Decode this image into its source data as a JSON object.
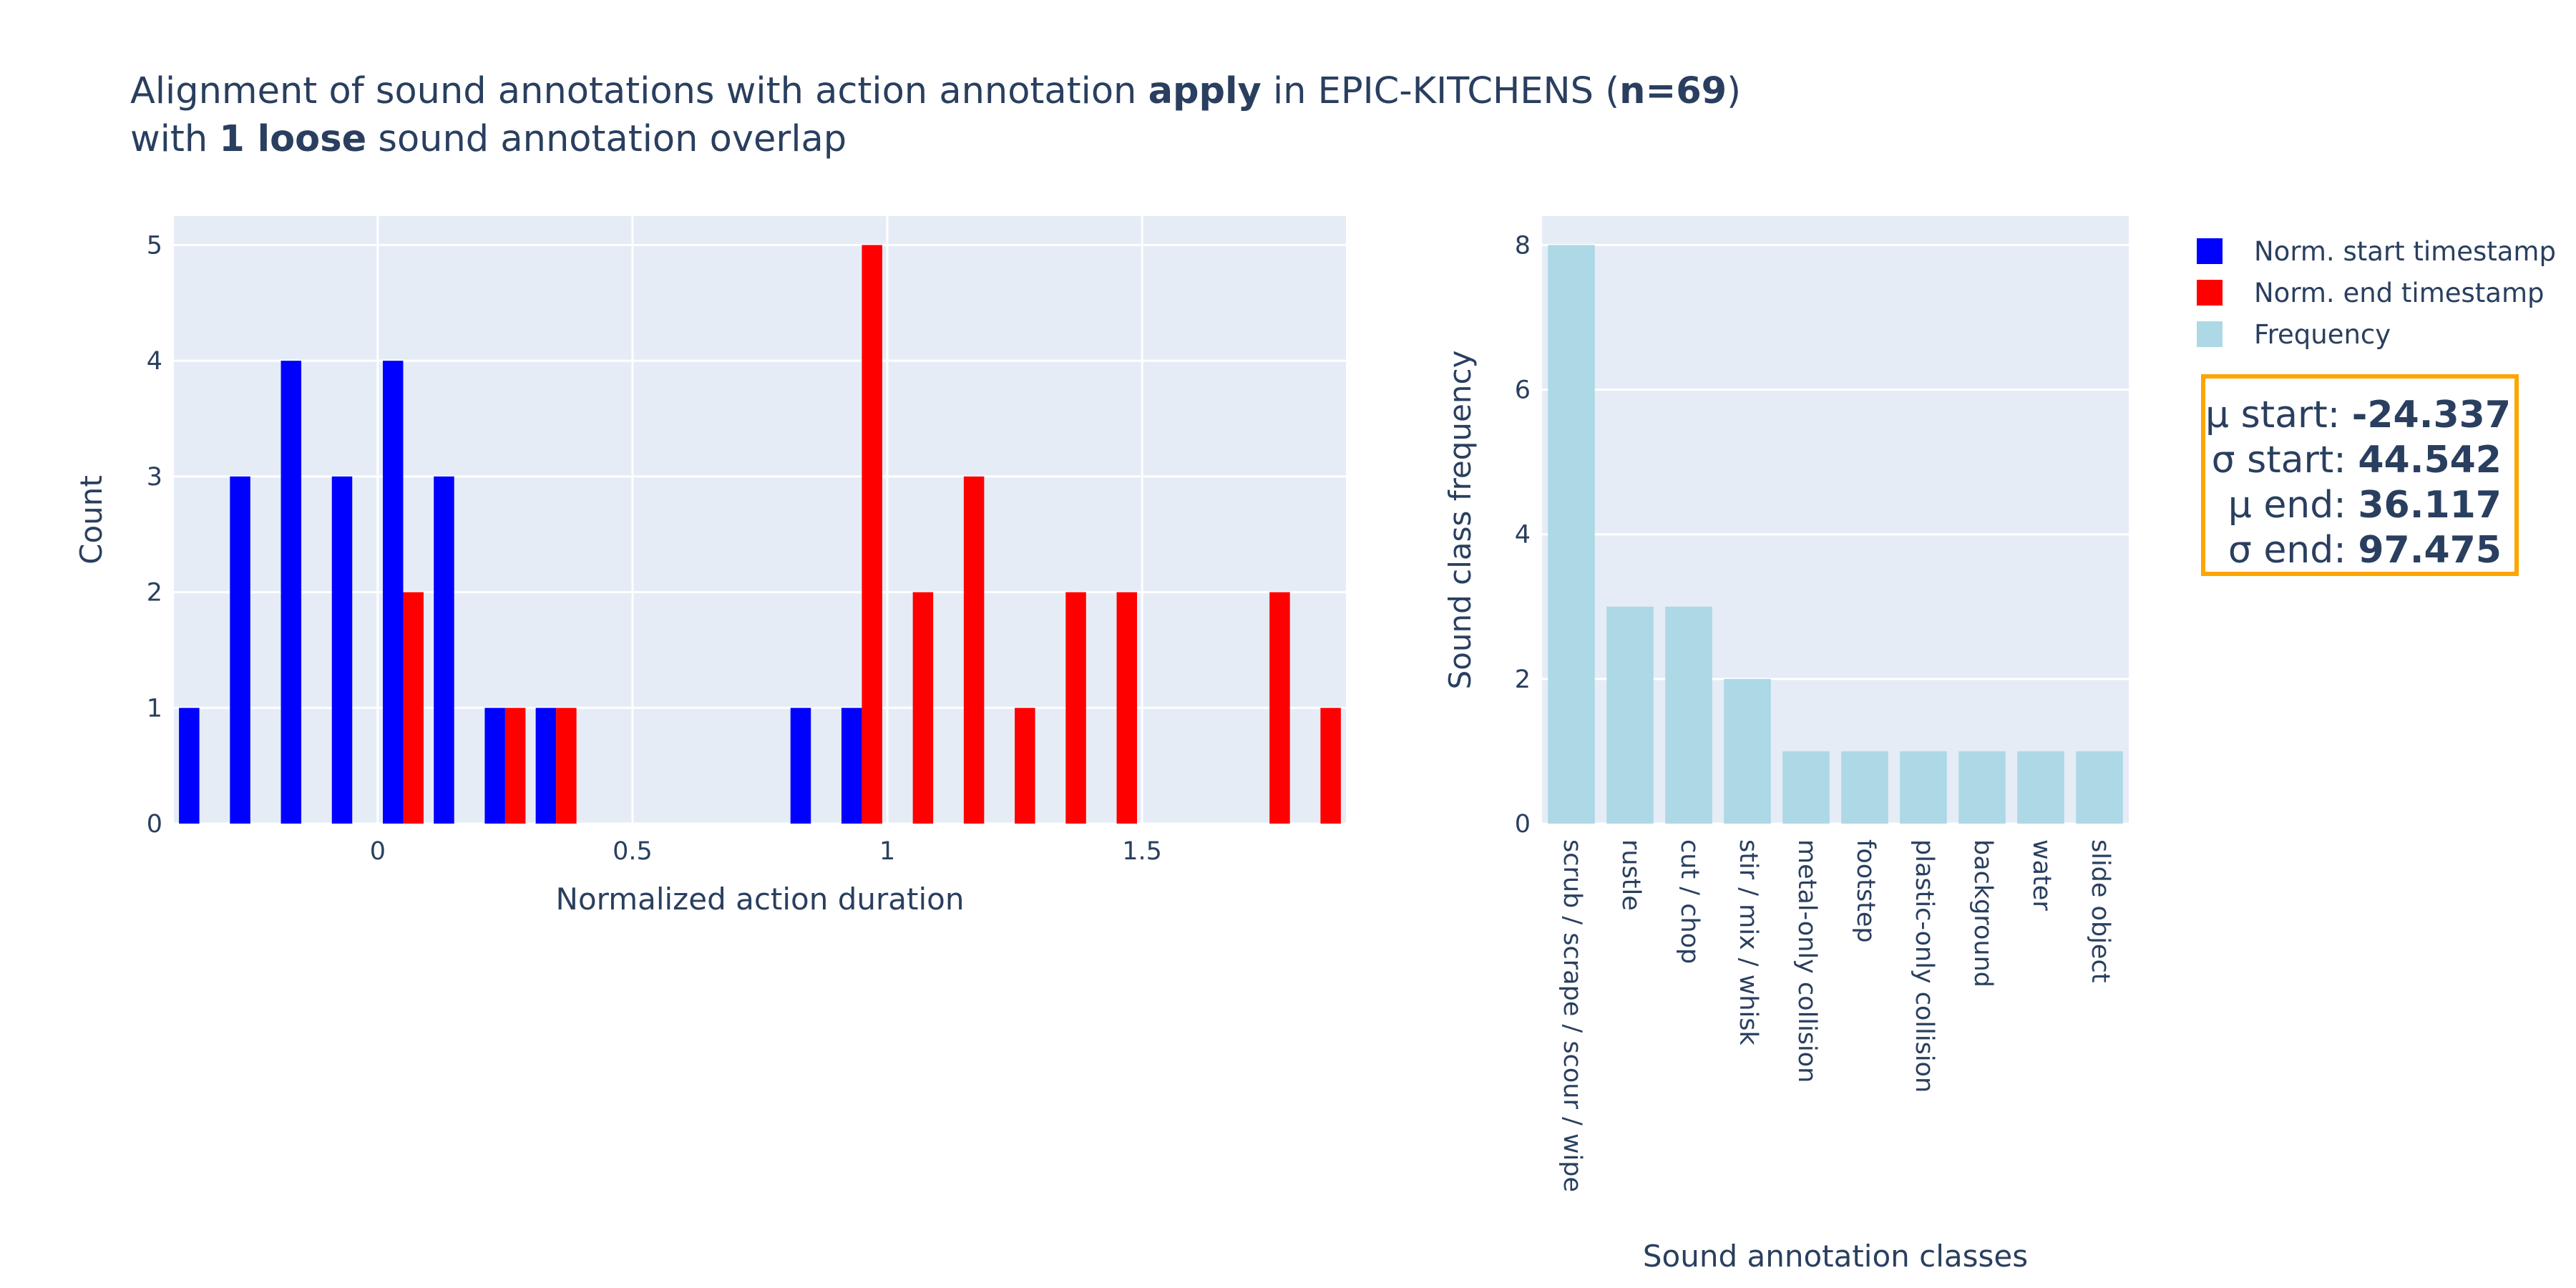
{
  "title": {
    "line1_pre": "Alignment of sound annotations with action annotation ",
    "line1_action": "apply",
    "line1_mid": " in EPIC-KITCHENS (",
    "line1_n": "n=69",
    "line1_post": ")",
    "line2_pre": "with ",
    "line2_bold": "1 loose",
    "line2_post": " sound annotation overlap"
  },
  "legend": [
    {
      "label": "Norm. start timestamp",
      "color": "#0000ff"
    },
    {
      "label": "Norm. end timestamp",
      "color": "#ff0000"
    },
    {
      "label": "Frequency",
      "color": "#add8e6"
    }
  ],
  "stats": [
    {
      "label": "μ start: ",
      "value": "-24.337"
    },
    {
      "label": "σ start: ",
      "value": "44.542"
    },
    {
      "label": "μ end: ",
      "value": "36.117"
    },
    {
      "label": "σ end: ",
      "value": "97.475"
    }
  ],
  "chart_data": [
    {
      "type": "bar",
      "xlabel": "Normalized action duration",
      "ylabel": "Count",
      "xlim": [
        -0.4,
        1.9
      ],
      "ylim": [
        0,
        5.25
      ],
      "xticks": [
        0,
        0.5,
        1,
        1.5
      ],
      "xtick_labels": [
        "0",
        "0.5",
        "1",
        "1.5"
      ],
      "yticks": [
        0,
        1,
        2,
        3,
        4,
        5
      ],
      "bin_width": 0.1,
      "series": [
        {
          "name": "Norm. start timestamp",
          "color": "#0000ff",
          "x": [
            -0.35,
            -0.25,
            -0.15,
            -0.05,
            0.05,
            0.15,
            0.25,
            0.35,
            0.85,
            0.95
          ],
          "values": [
            1,
            3,
            4,
            3,
            4,
            3,
            1,
            1,
            1,
            1
          ]
        },
        {
          "name": "Norm. end timestamp",
          "color": "#ff0000",
          "x": [
            0.05,
            0.25,
            0.35,
            0.95,
            1.05,
            1.15,
            1.25,
            1.35,
            1.45,
            1.75,
            1.85
          ],
          "values": [
            2,
            1,
            1,
            5,
            2,
            3,
            1,
            2,
            2,
            2,
            1
          ]
        }
      ],
      "grid": true
    },
    {
      "type": "bar",
      "xlabel": "Sound annotation classes",
      "ylabel": "Sound class frequency",
      "ylim": [
        0,
        8.4
      ],
      "yticks": [
        0,
        2,
        4,
        6,
        8
      ],
      "categories": [
        "scrub / scrape / scour / wipe",
        "rustle",
        "cut / chop",
        "stir / mix / whisk",
        "metal-only collision",
        "footstep",
        "plastic-only collision",
        "background",
        "water",
        "slide object"
      ],
      "values": [
        8,
        3,
        3,
        2,
        1,
        1,
        1,
        1,
        1,
        1
      ],
      "series_name": "Frequency",
      "color": "#add8e6",
      "grid": true
    }
  ]
}
